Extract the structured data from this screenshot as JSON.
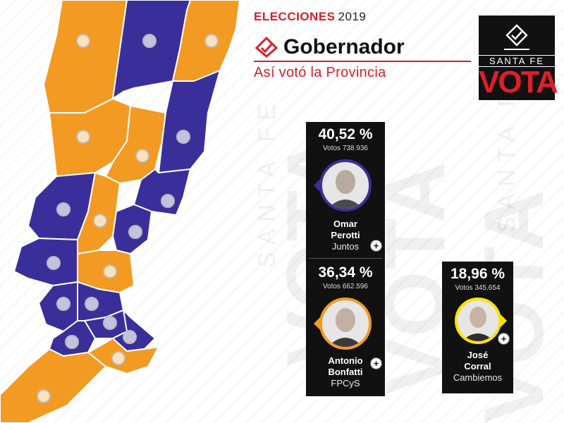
{
  "header": {
    "elecciones_label": "ELECCIONES",
    "year": "2019",
    "title": "Gobernador",
    "subtitle": "Así votó la Provincia"
  },
  "logo": {
    "line1": "SANTA FE",
    "line2": "VOTA"
  },
  "watermark": {
    "big_text": "VOTA",
    "small_text": "SANTA FE"
  },
  "colors": {
    "accent_red": "#d3202e",
    "juntos_blue": "#3a2f9a",
    "fpcys_orange": "#f39a23",
    "cambiemos_yellow": "#ffe200"
  },
  "candidates": [
    {
      "percent": "40,52 %",
      "votes_label": "Votos 738.936",
      "first_name": "Omar",
      "last_name": "Perotti",
      "party": "Juntos",
      "ring_color": "#3a2f9a"
    },
    {
      "percent": "36,34 %",
      "votes_label": "Votos 662.596",
      "first_name": "Antonio",
      "last_name": "Bonfatti",
      "party": "FPCyS",
      "ring_color": "#f39a23"
    },
    {
      "percent": "18,96 %",
      "votes_label": "Votos 345.654",
      "first_name": "José",
      "last_name": "Corral",
      "party": "Cambiemos",
      "ring_color": "#ffe200"
    }
  ],
  "map": {
    "departments": [
      {
        "name": "department-1",
        "winner": "fpcys"
      },
      {
        "name": "department-2",
        "winner": "juntos"
      },
      {
        "name": "department-3",
        "winner": "fpcys"
      },
      {
        "name": "department-4",
        "winner": "fpcys"
      },
      {
        "name": "department-5",
        "winner": "fpcys"
      },
      {
        "name": "department-6",
        "winner": "juntos"
      },
      {
        "name": "department-7",
        "winner": "juntos"
      },
      {
        "name": "department-8",
        "winner": "fpcys"
      },
      {
        "name": "department-9",
        "winner": "juntos"
      },
      {
        "name": "department-10",
        "winner": "juntos"
      },
      {
        "name": "department-11",
        "winner": "juntos"
      },
      {
        "name": "department-12",
        "winner": "fpcys"
      },
      {
        "name": "department-13",
        "winner": "juntos"
      },
      {
        "name": "department-14",
        "winner": "juntos"
      },
      {
        "name": "department-15",
        "winner": "juntos"
      },
      {
        "name": "department-16",
        "winner": "juntos"
      },
      {
        "name": "department-17",
        "winner": "juntos"
      },
      {
        "name": "department-18",
        "winner": "fpcys"
      },
      {
        "name": "department-19",
        "winner": "fpcys"
      }
    ]
  }
}
